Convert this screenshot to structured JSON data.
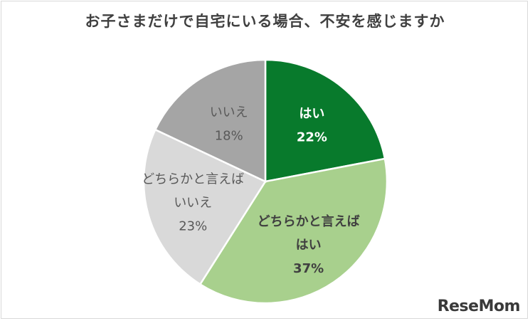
{
  "chart_data": {
    "type": "pie",
    "title": "お子さまだけで自宅にいる場合、不安を感じますか",
    "slices": [
      {
        "label_lines": [
          "はい"
        ],
        "value": 22,
        "value_text": "22%",
        "color": "#087a2c",
        "label_color": "#ffffff",
        "bold": true
      },
      {
        "label_lines": [
          "どちらかと言えば",
          "はい"
        ],
        "value": 37,
        "value_text": "37%",
        "color": "#a8d08d",
        "label_color": "#404040",
        "bold": true
      },
      {
        "label_lines": [
          "どちらかと言えば",
          "いいえ"
        ],
        "value": 23,
        "value_text": "23%",
        "color": "#d9d9d9",
        "label_color": "#595959",
        "bold": false
      },
      {
        "label_lines": [
          "いいえ"
        ],
        "value": 18,
        "value_text": "18%",
        "color": "#a5a5a5",
        "label_color": "#595959",
        "bold": false
      }
    ],
    "start_angle_deg": 0,
    "direction": "clockwise"
  },
  "logo": {
    "text": "ReseMom"
  }
}
